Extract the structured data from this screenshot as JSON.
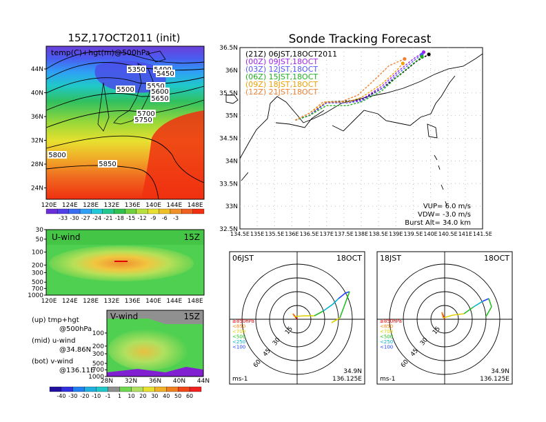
{
  "colors": {
    "bg": "#ffffff",
    "ink": "#000000"
  },
  "left": {
    "title": "15Z,17OCT2011 (init)",
    "map_label": "temp(C)+hgt(m)@500hPa",
    "contour_labels": [
      "5350",
      "5400",
      "5450",
      "5500",
      "5550",
      "5600",
      "5650",
      "5700",
      "5750",
      "5800",
      "5850"
    ],
    "lat_ticks": [
      "44N",
      "40N",
      "36N",
      "32N",
      "28N",
      "24N"
    ],
    "lon_ticks": [
      "120E",
      "124E",
      "128E",
      "132E",
      "136E",
      "140E",
      "144E",
      "148E"
    ],
    "temp_colorbar": [
      "-33",
      "-30",
      "-27",
      "-24",
      "-21",
      "-18",
      "-15",
      "-12",
      "-9",
      "-6",
      "-3"
    ],
    "uwind": {
      "label": "U-wind",
      "time": "15Z",
      "p_ticks": [
        "30",
        "50",
        "100",
        "200",
        "300",
        "500",
        "700",
        "1000"
      ]
    },
    "vwind": {
      "label": "V-wind",
      "time": "15Z",
      "p_ticks": [
        "100",
        "200",
        "300",
        "500",
        "700",
        "1000"
      ],
      "lat_ticks": [
        "28N",
        "32N",
        "36N",
        "40N",
        "44N"
      ]
    },
    "notes": [
      "(up) tmp+hgt",
      "@500hPa",
      "(mid) u-wind",
      "@34.86N",
      "(bot) v-wind",
      "@136.11E"
    ],
    "wind_colorbar": [
      "-40",
      "-30",
      "-20",
      "-10",
      "-1",
      "1",
      "10",
      "20",
      "30",
      "40",
      "50",
      "60"
    ]
  },
  "right": {
    "title": "Sonde Tracking Forecast",
    "lat_ticks": [
      "36.5N",
      "36N",
      "35.5N",
      "35N",
      "34.5N",
      "34N",
      "33.5N",
      "33N",
      "32.5N"
    ],
    "lon_ticks": [
      "134.5E",
      "135E",
      "135.5E",
      "136E",
      "136.5E",
      "137E",
      "137.5E",
      "138E",
      "138.5E",
      "139E",
      "139.5E",
      "140E",
      "140.5E",
      "141E",
      "141.5E"
    ],
    "legend": [
      {
        "text": "(21Z) 06JST,18OCT2011",
        "color": "#000000"
      },
      {
        "text": "(00Z)  09JST,18OCT",
        "color": "#a020f0"
      },
      {
        "text": "(03Z)  12JST,18OCT",
        "color": "#5555ff"
      },
      {
        "text": "(06Z)  15JST,18OCT",
        "color": "#20b020"
      },
      {
        "text": "(09Z)  18JST,18OCT",
        "color": "#f0a000"
      },
      {
        "text": "(12Z)  21JST,18OCT",
        "color": "#f08030"
      }
    ],
    "params": [
      "VUP=  6.0  m/s",
      "VDW=  -3.0  m/s",
      "Burst Alt=  34.0  km"
    ]
  },
  "hodographs": [
    {
      "time": "06JST",
      "date": "18OCT",
      "rings": [
        "15",
        "30",
        "45",
        "60"
      ],
      "unit": "ms-1",
      "lat": "34.9N",
      "lon": "136.125E"
    },
    {
      "time": "18JST",
      "date": "18OCT",
      "rings": [
        "15",
        "30",
        "45",
        "60"
      ],
      "unit": "ms-1",
      "lat": "34.9N",
      "lon": "136.125E"
    }
  ],
  "hodo_legend": [
    {
      "text": "≥850hPa",
      "color": "#e00000"
    },
    {
      "text": "<850",
      "color": "#ff8000"
    },
    {
      "text": "<700",
      "color": "#e0d000"
    },
    {
      "text": "<500",
      "color": "#20c020"
    },
    {
      "text": "<250",
      "color": "#00b0d0"
    },
    {
      "text": "<100",
      "color": "#2040ff"
    }
  ],
  "chart_data": [
    {
      "type": "heatmap",
      "title": "15Z,17OCT2011 (init)",
      "annotation": "temp(C)+hgt(m)@500hPa",
      "x_ticks": [
        "120E",
        "124E",
        "128E",
        "132E",
        "136E",
        "140E",
        "144E",
        "148E"
      ],
      "y_ticks": [
        "44N",
        "40N",
        "36N",
        "32N",
        "28N",
        "24N"
      ],
      "colorbar": [
        -33,
        -30,
        -27,
        -24,
        -21,
        -18,
        -15,
        -12,
        -9,
        -6,
        -3
      ],
      "contours": [
        5350,
        5400,
        5450,
        5500,
        5550,
        5600,
        5650,
        5700,
        5750,
        5800,
        5850
      ]
    },
    {
      "type": "line",
      "title": "Sonde Tracking Forecast",
      "xlim": [
        134.5,
        141.5
      ],
      "ylim": [
        32.5,
        36.5
      ],
      "series": [
        {
          "name": "(21Z) 06JST,18OCT2011",
          "color": "#000000",
          "x": [
            136.1,
            136.5,
            137.0,
            137.6,
            138.0,
            138.6,
            139.2,
            139.6,
            139.95
          ],
          "y": [
            34.9,
            35.0,
            35.3,
            35.32,
            35.35,
            35.6,
            35.95,
            36.2,
            36.35
          ]
        },
        {
          "name": "(00Z)  09JST,18OCT",
          "color": "#a020f0",
          "x": [
            136.1,
            136.5,
            137.0,
            137.6,
            138.0,
            138.6,
            139.1,
            139.5,
            139.8
          ],
          "y": [
            34.9,
            35.0,
            35.28,
            35.28,
            35.35,
            35.65,
            36.0,
            36.25,
            36.4
          ]
        },
        {
          "name": "(03Z)  12JST,18OCT",
          "color": "#5555ff",
          "x": [
            136.1,
            136.5,
            137.0,
            137.6,
            138.0,
            138.6,
            139.1,
            139.5,
            139.75
          ],
          "y": [
            34.9,
            35.0,
            35.28,
            35.28,
            35.32,
            35.6,
            35.95,
            36.2,
            36.35
          ]
        },
        {
          "name": "(06Z)  15JST,18OCT",
          "color": "#20b020",
          "x": [
            136.1,
            136.5,
            137.0,
            137.6,
            138.0,
            138.6,
            139.1,
            139.5,
            139.75
          ],
          "y": [
            34.9,
            35.0,
            35.22,
            35.22,
            35.3,
            35.55,
            35.9,
            36.15,
            36.3
          ]
        },
        {
          "name": "(09Z)  18JST,18OCT",
          "color": "#f0a000",
          "x": [
            136.1,
            136.5,
            137.0,
            137.6,
            138.0,
            138.6,
            139.0,
            139.2
          ],
          "y": [
            34.9,
            35.05,
            35.3,
            35.3,
            35.4,
            35.7,
            35.98,
            36.15
          ]
        },
        {
          "name": "(12Z)  21JST,18OCT",
          "color": "#f08030",
          "x": [
            136.1,
            136.5,
            136.9,
            137.4,
            137.9,
            138.4,
            138.8,
            139.1,
            139.25
          ],
          "y": [
            34.9,
            35.05,
            35.3,
            35.3,
            35.45,
            35.8,
            36.1,
            36.2,
            36.25
          ]
        }
      ]
    }
  ]
}
